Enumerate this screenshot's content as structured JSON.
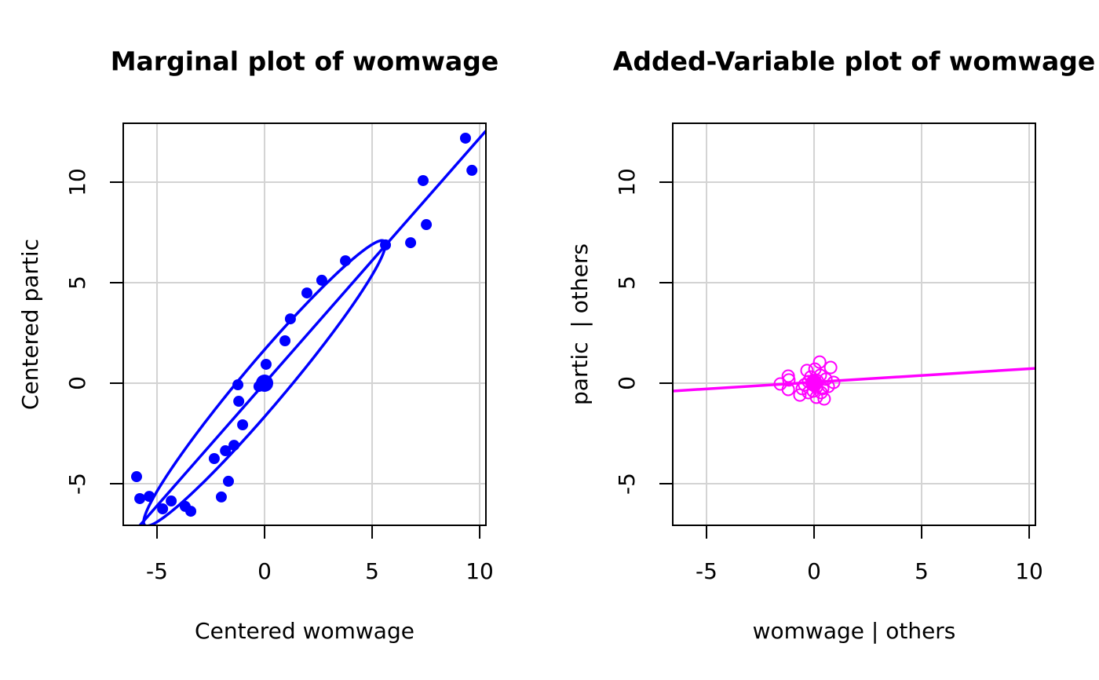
{
  "chart_data": [
    {
      "type": "scatter",
      "title": "Marginal plot of womwage",
      "xlabel": "Centered womwage",
      "ylabel": "Centered partic",
      "color": "#0000ff",
      "marker": "filled",
      "x": [
        9.34,
        9.64,
        7.37,
        7.52,
        6.79,
        5.62,
        3.76,
        2.66,
        1.97,
        1.2,
        0.95,
        0.07,
        -0.26,
        -1.24,
        -1.2,
        -1.02,
        -1.42,
        -1.82,
        -2.34,
        -1.68,
        -2.01,
        -5.95,
        -5.8,
        -5.36,
        -4.34,
        -4.74,
        -3.69,
        -3.43
      ],
      "y": [
        12.19,
        10.59,
        10.08,
        7.89,
        6.99,
        6.88,
        6.09,
        5.12,
        4.49,
        3.2,
        2.11,
        0.94,
        -0.16,
        -0.08,
        -0.9,
        -2.07,
        -3.09,
        -3.36,
        -3.75,
        -4.88,
        -5.66,
        -4.65,
        -5.74,
        -5.63,
        -5.86,
        -6.25,
        -6.13,
        -6.37
      ],
      "center": [
        0,
        0
      ],
      "fit_line": {
        "slope": 1.22,
        "intercept": 0
      },
      "ellipse": {
        "sx": 5.62,
        "sy": 7.1,
        "r": 0.972
      },
      "xlim": [
        -6.57,
        10.29
      ],
      "ylim": [
        -7.07,
        12.93
      ],
      "xticks": [
        -5,
        0,
        5,
        10
      ],
      "yticks": [
        -5,
        0,
        5,
        10
      ],
      "grid": true
    },
    {
      "type": "scatter",
      "title": "Added-Variable plot of womwage",
      "xlabel": "womwage | others",
      "ylabel": "partic  | others",
      "color": "#ff00ff",
      "marker": "open",
      "x": [
        0.26,
        0.77,
        -1.2,
        -1.17,
        -1.57,
        -1.2,
        -0.66,
        -0.33,
        0.04,
        0.91,
        0.47,
        0.11,
        -0.26,
        -0.44,
        -0.15,
        0.29,
        0.55,
        0.4,
        0.66,
        -0.04,
        0.15,
        0.11,
        -0.26,
        0.33,
        -0.55,
        -0.04
      ],
      "y": [
        1.05,
        0.78,
        0.35,
        0.16,
        -0.04,
        -0.31,
        -0.59,
        0.63,
        0.7,
        0.04,
        -0.78,
        -0.7,
        -0.47,
        -0.08,
        0.31,
        0.39,
        0.2,
        -0.27,
        -0.16,
        -0.08,
        0.12,
        -0.2,
        0.08,
        -0.47,
        -0.27,
        -0.39
      ],
      "center": [
        0,
        0
      ],
      "fit_line": {
        "slope": 0.067,
        "intercept": 0.05
      },
      "xlim": [
        -6.57,
        10.29
      ],
      "ylim": [
        -7.07,
        12.93
      ],
      "xticks": [
        -5,
        0,
        5,
        10
      ],
      "yticks": [
        -5,
        0,
        5,
        10
      ],
      "grid": true
    }
  ]
}
